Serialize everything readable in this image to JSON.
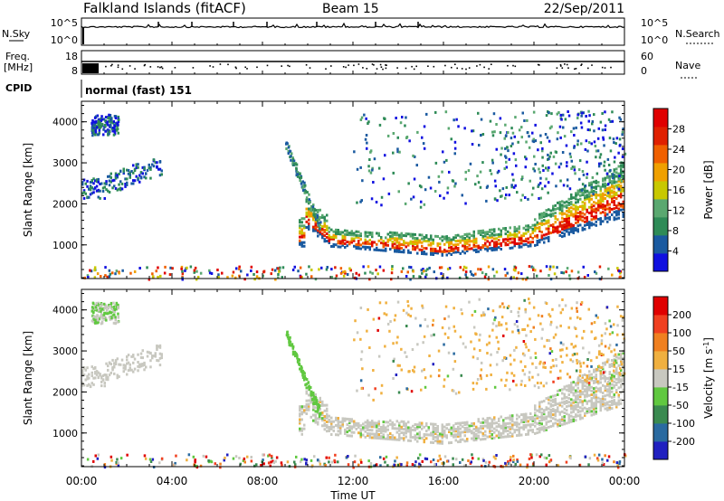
{
  "header": {
    "station": "Falkland Islands (fitACF)",
    "beam": "Beam 15",
    "date": "22/Sep/2011"
  },
  "aux": {
    "nsky_label": "N.Sky",
    "nsky_ticks": [
      "10^5",
      "10^0"
    ],
    "nsearch_label": "N.Search",
    "nsearch_ticks": [
      "10^5",
      "10^0"
    ],
    "freq_label_1": "Freq.",
    "freq_label_2": "[MHz]",
    "freq_ticks": [
      "18",
      "8"
    ],
    "nave_label": "Nave",
    "nave_ticks": [
      "60",
      "0"
    ],
    "cpid_label": "CPID",
    "cpid_text": "normal (fast) 151"
  },
  "chart_data": [
    {
      "type": "heatmap",
      "id": "power",
      "xlabel": "",
      "ylabel": "Slant Range [km]",
      "x_ticks": [
        "00:00",
        "04:00",
        "08:00",
        "12:00",
        "16:00",
        "20:00",
        "00:00"
      ],
      "x_range_hours": [
        0,
        24
      ],
      "y_ticks": [
        "1000",
        "2000",
        "3000",
        "4000"
      ],
      "ylim": [
        180,
        4500
      ],
      "colorbar": {
        "label": "Power [dB]",
        "ticks": [
          "4",
          "8",
          "12",
          "16",
          "20",
          "24",
          "28"
        ],
        "colors": [
          "#1010e0",
          "#1a5aa0",
          "#2e8b57",
          "#5aa870",
          "#c8c800",
          "#f0a000",
          "#f06000",
          "#e02000",
          "#e00000"
        ]
      }
    },
    {
      "type": "heatmap",
      "id": "velocity",
      "xlabel": "Time UT",
      "ylabel": "Slant Range [km]",
      "x_ticks": [
        "00:00",
        "04:00",
        "08:00",
        "12:00",
        "16:00",
        "20:00",
        "00:00"
      ],
      "x_range_hours": [
        0,
        24
      ],
      "y_ticks": [
        "1000",
        "2000",
        "3000",
        "4000"
      ],
      "ylim": [
        180,
        4500
      ],
      "colorbar": {
        "label": "Velocity [m s",
        "label_sup": "-1",
        "label_end": "]",
        "ticks": [
          "200",
          "100",
          "50",
          "15",
          "-15",
          "-50",
          "-100",
          "-200"
        ],
        "colors": [
          "#2020c0",
          "#2a6aa0",
          "#3a8a50",
          "#60c840",
          "#c8c8c0",
          "#f0b040",
          "#f08020",
          "#f04020",
          "#e00000"
        ]
      }
    }
  ]
}
